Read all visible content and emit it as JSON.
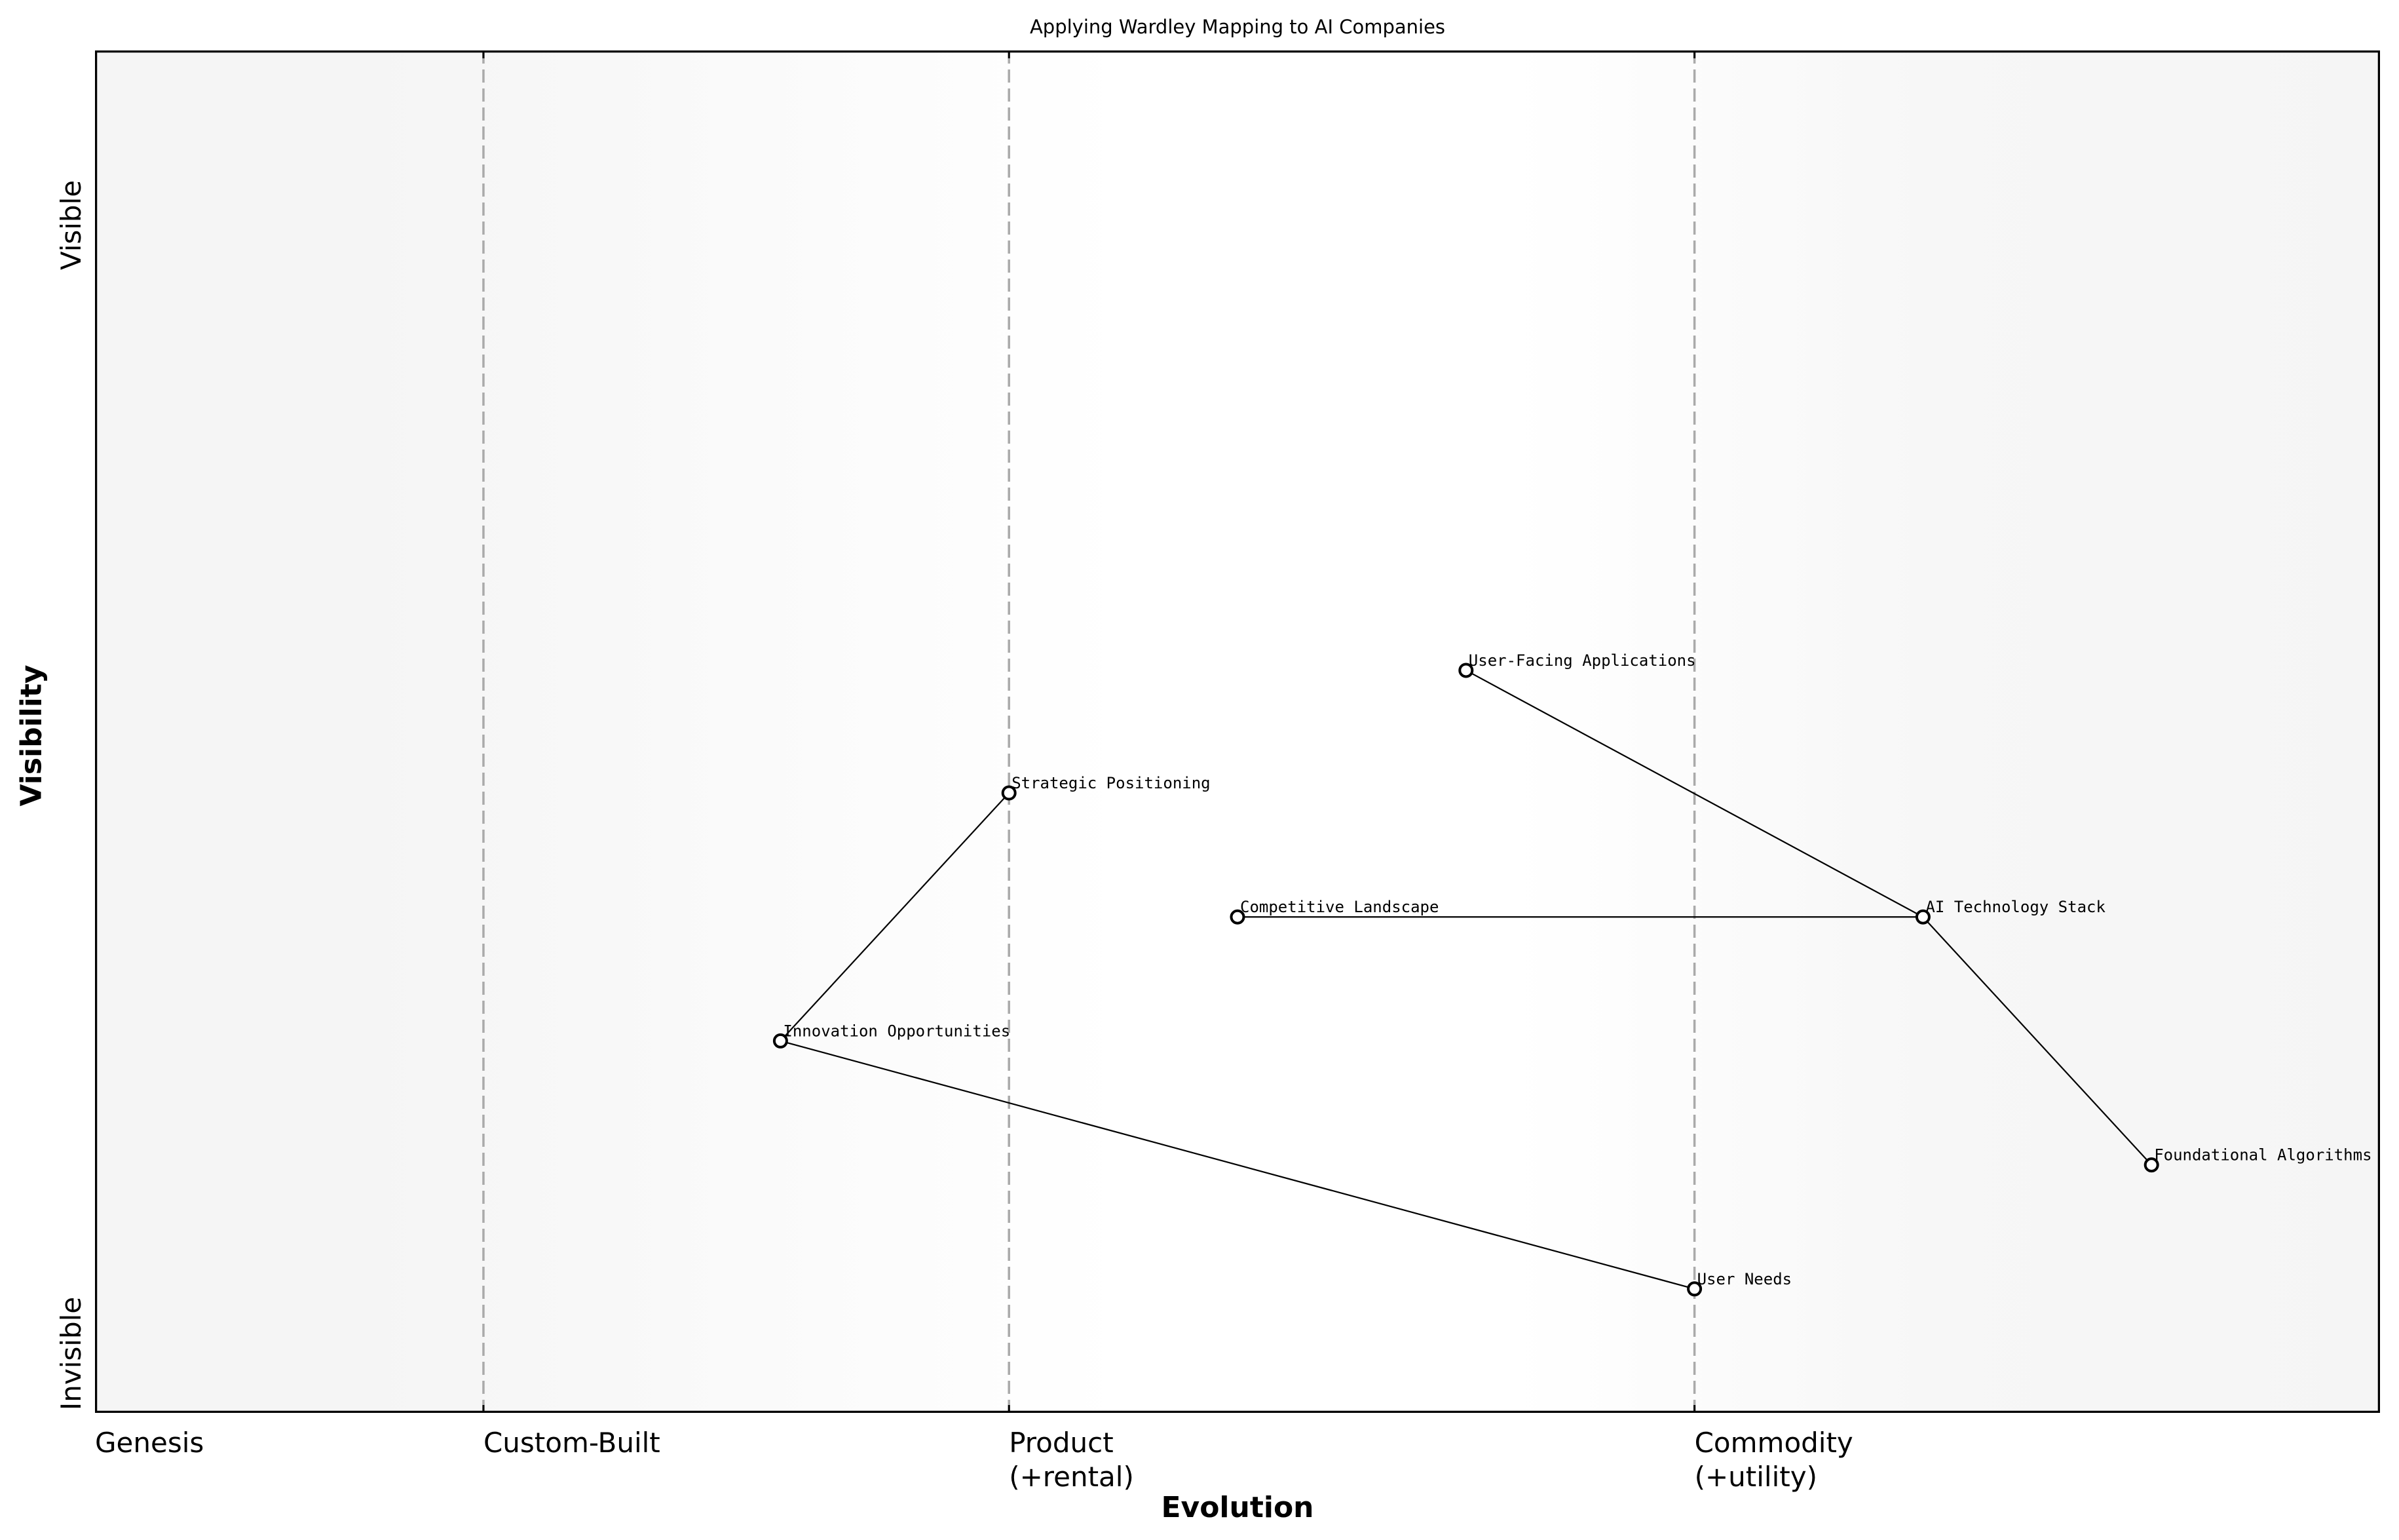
{
  "chart_data": {
    "type": "scatter",
    "title": "Applying Wardley Mapping to AI Companies",
    "xlabel": "Evolution",
    "ylabel": "Visibility",
    "xlim": [
      0,
      1
    ],
    "ylim": [
      0,
      1
    ],
    "grid": false,
    "x_ticks": [
      {
        "pos": 0.0,
        "label": "Genesis"
      },
      {
        "pos": 0.17,
        "label": "Custom-Built"
      },
      {
        "pos": 0.4,
        "label": "Product\n(+rental)"
      },
      {
        "pos": 0.7,
        "label": "Commodity\n(+utility)"
      }
    ],
    "y_ticks": [
      {
        "pos": 0.0,
        "label": "Invisible"
      },
      {
        "pos": 0.9,
        "label": "Visible"
      }
    ],
    "stage_dividers": [
      0.17,
      0.4,
      0.7
    ],
    "points": [
      {
        "name": "User Needs",
        "x": 0.7,
        "y": 0.091
      },
      {
        "name": "Foundational Algorithms",
        "x": 0.9,
        "y": 0.182
      },
      {
        "name": "Innovation Opportunities",
        "x": 0.3,
        "y": 0.273
      },
      {
        "name": "Competitive Landscape",
        "x": 0.5,
        "y": 0.364
      },
      {
        "name": "AI Technology Stack",
        "x": 0.8,
        "y": 0.364
      },
      {
        "name": "Strategic Positioning",
        "x": 0.4,
        "y": 0.455
      },
      {
        "name": "User-Facing Applications",
        "x": 0.6,
        "y": 0.545
      }
    ],
    "links": [
      [
        "User-Facing Applications",
        "AI Technology Stack"
      ],
      [
        "AI Technology Stack",
        "Foundational Algorithms"
      ],
      [
        "Competitive Landscape",
        "AI Technology Stack"
      ],
      [
        "Strategic Positioning",
        "Innovation Opportunities"
      ],
      [
        "Innovation Opportunities",
        "User Needs"
      ]
    ],
    "colors": {
      "edge_bg": "#f5f5f5",
      "center_bg": "#ffffff",
      "divider": "#aaaaaa",
      "line": "#000000",
      "marker_fill": "#ffffff",
      "marker_edge": "#000000"
    }
  }
}
